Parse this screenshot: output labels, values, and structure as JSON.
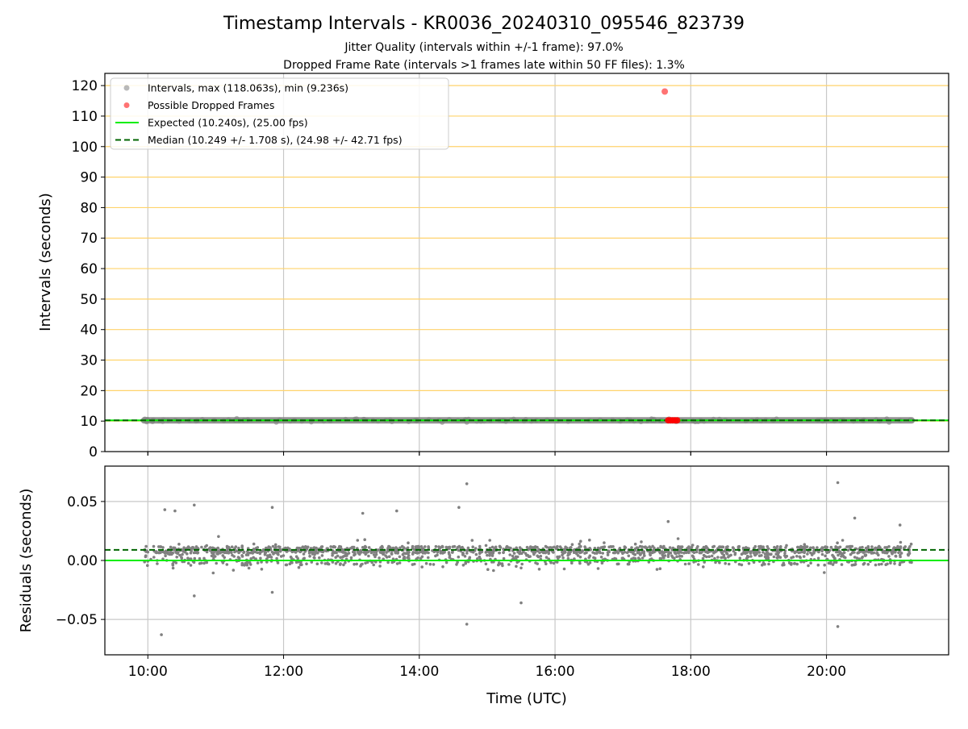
{
  "figure": {
    "title": "Timestamp Intervals - KR0036_20240310_095546_823739",
    "subtitle_lines": [
      "Jitter Quality (intervals within +/-1 frame): 97.0%",
      "Dropped Frame Rate (intervals >1 frames late within 50 FF files): 1.3%"
    ],
    "xlabel": "Time (UTC)",
    "colors": {
      "intervals": "#808080",
      "dropped": "#ff0000",
      "expected": "#00ee00",
      "median": "#006400",
      "h_grid": "#ffd36b",
      "v_grid": "#c8c8c8"
    }
  },
  "chart_data": [
    {
      "type": "scatter",
      "panel": "top",
      "ylabel": "Intervals (seconds)",
      "xlim": [
        "09:22",
        "21:48"
      ],
      "ylim": [
        0,
        124
      ],
      "x_ticks": [
        "10:00",
        "12:00",
        "14:00",
        "16:00",
        "18:00",
        "20:00"
      ],
      "y_ticks": [
        0,
        10,
        20,
        30,
        40,
        50,
        60,
        70,
        80,
        90,
        100,
        110,
        120
      ],
      "h_grid_values": [
        10,
        20,
        30,
        40,
        50,
        60,
        70,
        80,
        90,
        100,
        110,
        120
      ],
      "grid": true,
      "legend_position": "top-left",
      "legend": [
        {
          "label": "Intervals, max (118.063s), min (9.236s)",
          "kind": "marker",
          "color": "#808080"
        },
        {
          "label": "Possible Dropped Frames",
          "kind": "marker",
          "color": "#ff0000"
        },
        {
          "label": "Expected (10.240s), (25.00 fps)",
          "kind": "solid-line",
          "color": "#00ee00"
        },
        {
          "label": "Median (10.249 +/- 1.708 s), (24.98 +/- 42.71 fps)",
          "kind": "dashed-line",
          "color": "#006400"
        }
      ],
      "series": [
        {
          "name": "Intervals, max (118.063s), min (9.236s)",
          "x_range": [
            "09:56",
            "21:16"
          ],
          "typical_value": 10.24,
          "min": 9.236,
          "max": 118.063
        },
        {
          "name": "Possible Dropped Frames",
          "points": [
            {
              "x": "17:37",
              "y": 118.063
            },
            {
              "x": "17:40",
              "y": 10.25
            },
            {
              "x": "17:42",
              "y": 10.25
            },
            {
              "x": "17:44",
              "y": 10.25
            },
            {
              "x": "17:46",
              "y": 10.25
            },
            {
              "x": "17:48",
              "y": 10.25
            }
          ]
        },
        {
          "name": "Expected (10.240s), (25.00 fps)",
          "y": 10.24
        },
        {
          "name": "Median (10.249 +/- 1.708 s), (24.98 +/- 42.71 fps)",
          "y": 10.249
        }
      ]
    },
    {
      "type": "scatter",
      "panel": "bottom",
      "ylabel": "Residuals (seconds)",
      "xlim": [
        "09:22",
        "21:48"
      ],
      "ylim": [
        -0.08,
        0.08
      ],
      "x_ticks": [
        "10:00",
        "12:00",
        "14:00",
        "16:00",
        "18:00",
        "20:00"
      ],
      "y_ticks": [
        0.05,
        0.0,
        -0.05
      ],
      "y_tick_labels": [
        "0.05",
        "0.00",
        "−0.05"
      ],
      "grid": true,
      "series": [
        {
          "name": "residuals",
          "x_range": [
            "09:56",
            "21:16"
          ],
          "typical_range": [
            -0.005,
            0.02
          ],
          "outliers": [
            {
              "x": "10:12",
              "y": -0.063
            },
            {
              "x": "10:15",
              "y": 0.043
            },
            {
              "x": "10:24",
              "y": 0.042
            },
            {
              "x": "10:41",
              "y": 0.047
            },
            {
              "x": "10:41",
              "y": -0.03
            },
            {
              "x": "11:50",
              "y": 0.045
            },
            {
              "x": "11:50",
              "y": -0.027
            },
            {
              "x": "14:42",
              "y": 0.065
            },
            {
              "x": "14:42",
              "y": -0.054
            },
            {
              "x": "15:30",
              "y": -0.036
            },
            {
              "x": "20:10",
              "y": 0.066
            },
            {
              "x": "20:10",
              "y": -0.056
            },
            {
              "x": "13:10",
              "y": 0.04
            },
            {
              "x": "13:40",
              "y": 0.042
            },
            {
              "x": "14:35",
              "y": 0.045
            },
            {
              "x": "17:40",
              "y": 0.033
            },
            {
              "x": "20:25",
              "y": 0.036
            },
            {
              "x": "21:05",
              "y": 0.03
            }
          ]
        },
        {
          "name": "expected-zero",
          "y": 0.0
        },
        {
          "name": "median-offset",
          "y": 0.009
        }
      ]
    }
  ]
}
